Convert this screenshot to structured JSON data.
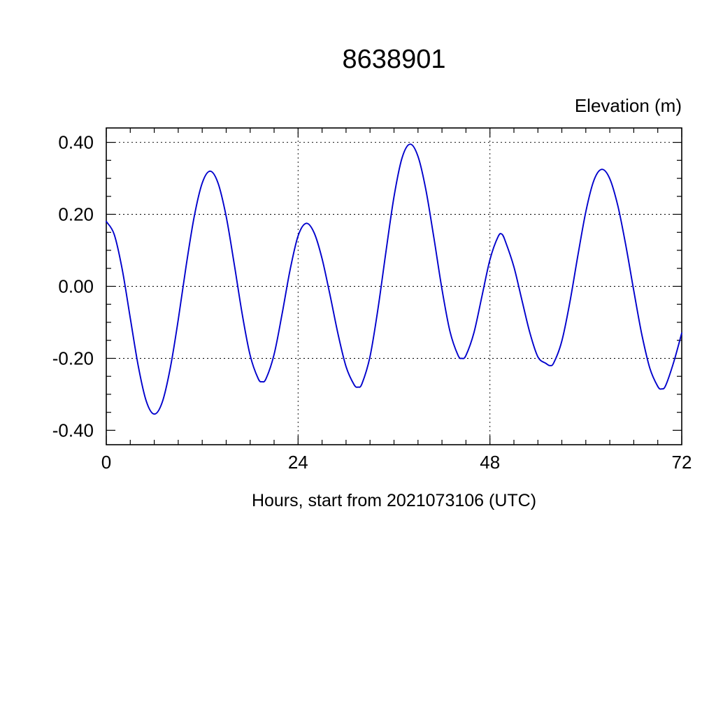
{
  "page": {
    "background": "#ffffff"
  },
  "chart_data": {
    "type": "line",
    "title": "8638901",
    "y_axis_title": "Elevation (m)",
    "xlabel": "Hours, start from 2021073106 (UTC)",
    "xlim": [
      0,
      72
    ],
    "ylim": [
      -0.44,
      0.44
    ],
    "xticks": {
      "major": [
        0,
        24,
        48,
        72
      ],
      "labels": [
        "0",
        "24",
        "48",
        "72"
      ],
      "minor_step": 3
    },
    "yticks": {
      "major": [
        -0.4,
        -0.2,
        0.0,
        0.2,
        0.4
      ],
      "labels": [
        "-0.40",
        "-0.20",
        "0.00",
        "0.20",
        "0.40"
      ],
      "minor_step": 0.05
    },
    "grid": {
      "x": [
        24,
        48
      ],
      "y": [
        -0.2,
        0.0,
        0.2,
        0.4
      ],
      "style": "dashed"
    },
    "axis_color": "#000000",
    "line_color": "#0000cc",
    "legend": "none",
    "series": [
      {
        "name": "elevation",
        "points": [
          [
            0,
            0.18
          ],
          [
            1,
            0.144
          ],
          [
            2,
            0.046
          ],
          [
            3,
            -0.088
          ],
          [
            4,
            -0.221
          ],
          [
            5,
            -0.319
          ],
          [
            6,
            -0.355
          ],
          [
            7,
            -0.322
          ],
          [
            8,
            -0.228
          ],
          [
            9,
            -0.093
          ],
          [
            10,
            0.058
          ],
          [
            11,
            0.193
          ],
          [
            12,
            0.287
          ],
          [
            13,
            0.32
          ],
          [
            14,
            0.286
          ],
          [
            15,
            0.194
          ],
          [
            16,
            0.063
          ],
          [
            17,
            -0.076
          ],
          [
            18,
            -0.192
          ],
          [
            19,
            -0.256
          ],
          [
            19.5,
            -0.265
          ],
          [
            20,
            -0.256
          ],
          [
            21,
            -0.189
          ],
          [
            22,
            -0.076
          ],
          [
            23,
            0.046
          ],
          [
            24,
            0.14
          ],
          [
            25,
            0.175
          ],
          [
            26,
            0.149
          ],
          [
            27,
            0.077
          ],
          [
            28,
            -0.025
          ],
          [
            29,
            -0.133
          ],
          [
            30,
            -0.223
          ],
          [
            31,
            -0.273
          ],
          [
            31.5,
            -0.28
          ],
          [
            32,
            -0.27
          ],
          [
            33,
            -0.195
          ],
          [
            34,
            -0.062
          ],
          [
            35,
            0.098
          ],
          [
            36,
            0.249
          ],
          [
            37,
            0.356
          ],
          [
            38,
            0.395
          ],
          [
            39,
            0.361
          ],
          [
            40,
            0.267
          ],
          [
            41,
            0.133
          ],
          [
            42,
            -0.008
          ],
          [
            43,
            -0.125
          ],
          [
            44,
            -0.191
          ],
          [
            44.5,
            -0.2
          ],
          [
            45,
            -0.192
          ],
          [
            46,
            -0.129
          ],
          [
            47,
            -0.028
          ],
          [
            48,
            0.074
          ],
          [
            49,
            0.137
          ],
          [
            49.5,
            0.145
          ],
          [
            50,
            0.121
          ],
          [
            51,
            0.054
          ],
          [
            52,
            -0.038
          ],
          [
            53,
            -0.129
          ],
          [
            54,
            -0.196
          ],
          [
            55,
            -0.214
          ],
          [
            55.5,
            -0.22
          ],
          [
            56,
            -0.212
          ],
          [
            57,
            -0.152
          ],
          [
            58,
            -0.044
          ],
          [
            59,
            0.085
          ],
          [
            60,
            0.207
          ],
          [
            61,
            0.294
          ],
          [
            62,
            0.325
          ],
          [
            63,
            0.299
          ],
          [
            64,
            0.224
          ],
          [
            65,
            0.114
          ],
          [
            66,
            -0.012
          ],
          [
            67,
            -0.133
          ],
          [
            68,
            -0.227
          ],
          [
            69,
            -0.278
          ],
          [
            69.5,
            -0.285
          ],
          [
            70,
            -0.275
          ],
          [
            71,
            -0.21
          ],
          [
            72,
            -0.13
          ]
        ]
      }
    ]
  }
}
